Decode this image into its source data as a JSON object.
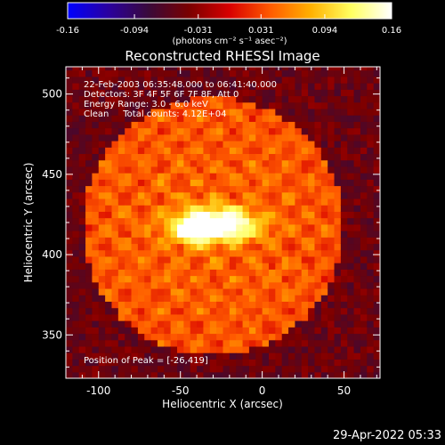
{
  "footer": {
    "timestamp": "29-Apr-2022 05:33"
  },
  "colorbar": {
    "ticks": [
      "-0.16",
      "-0.094",
      "-0.031",
      "0.031",
      "0.094",
      "0.16"
    ],
    "unit_label": "(photons cm⁻² s⁻¹ asec⁻²)",
    "colormap": [
      "#0000ff",
      "#2a00a0",
      "#3a0a3a",
      "#7a0000",
      "#d80000",
      "#ff5a00",
      "#ffb000",
      "#ffff60",
      "#ffffff"
    ]
  },
  "chart_data": {
    "type": "heatmap",
    "title": "Reconstructed RHESSI Image",
    "xlabel": "Heliocentric X (arcsec)",
    "ylabel": "Heliocentric Y (arcsec)",
    "xlim": [
      -120,
      72
    ],
    "ylim": [
      323,
      517
    ],
    "xticks": [
      -100,
      -50,
      0,
      50
    ],
    "yticks": [
      350,
      400,
      450,
      500
    ],
    "value_range": [
      -0.16,
      0.16
    ],
    "annotations": [
      "22-Feb-2003 06:35:48.000 to 06:41:40.000",
      "Detectors: 3F 4F 5F 6F 7F 8F, Att 0",
      "Energy Range: 3.0 - 6.0 keV",
      "Clean     Total counts: 4.12E+04"
    ],
    "peak_text": "Position of Peak = [-26,419]",
    "peak": [
      -26,
      419
    ],
    "sources": [
      {
        "x": -26,
        "y": 419,
        "peak": 0.16,
        "sx": 15,
        "sy": 7
      },
      {
        "x": -42,
        "y": 417,
        "peak": 0.09,
        "sx": 10,
        "sy": 6
      }
    ],
    "background": {
      "center": [
        -30,
        418
      ],
      "radius": 80,
      "level": 0.06
    },
    "background_outside": -0.05
  }
}
